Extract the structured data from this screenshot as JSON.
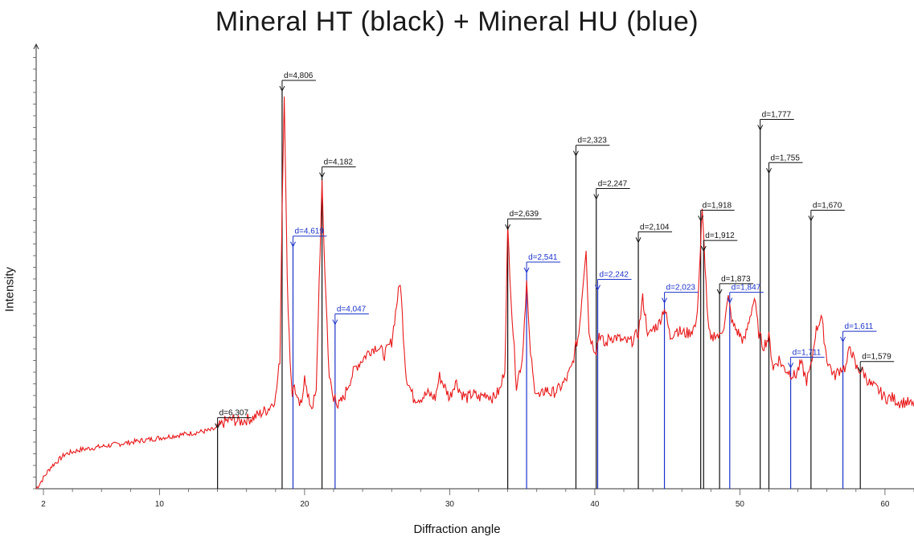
{
  "chart_data": {
    "type": "line",
    "title": "Mineral HT (black) + Mineral HU (blue)",
    "xlabel": "Diffraction angle",
    "ylabel": "Intensity",
    "xlim": [
      1.5,
      62
    ],
    "ylim": [
      0,
      100
    ],
    "x_tick_labels": [
      "2",
      "10",
      "20",
      "30",
      "40",
      "50",
      "60"
    ],
    "x_ticks": [
      2,
      10,
      20,
      30,
      40,
      50,
      60
    ],
    "colors": {
      "pattern": "#e8191a",
      "mineral_ht": "#111111",
      "mineral_hu": "#1c32c8"
    },
    "series": [
      {
        "name": "pattern",
        "x": [
          1.5,
          2.5,
          3.5,
          4.5,
          5.5,
          6.5,
          7.5,
          8.5,
          9.5,
          10.5,
          11.5,
          12.5,
          13.5,
          14.0,
          14.5,
          15.0,
          15.5,
          16.0,
          16.5,
          17.0,
          17.5,
          18.0,
          18.3,
          18.45,
          18.6,
          18.8,
          19.0,
          19.15,
          19.3,
          19.5,
          19.8,
          20.0,
          20.2,
          20.5,
          20.8,
          21.0,
          21.2,
          21.4,
          21.7,
          22.0,
          22.1,
          22.3,
          22.7,
          23.0,
          23.5,
          24.0,
          24.5,
          25.0,
          25.5,
          26.0,
          26.4,
          26.6,
          26.8,
          27.0,
          27.5,
          28.0,
          28.5,
          29.0,
          29.3,
          29.6,
          30.0,
          30.4,
          30.8,
          31.2,
          31.6,
          32.0,
          32.5,
          33.0,
          33.5,
          33.8,
          34.0,
          34.3,
          34.6,
          35.0,
          35.3,
          35.5,
          35.8,
          36.2,
          36.6,
          37.0,
          37.5,
          38.0,
          38.4,
          38.7,
          38.9,
          39.1,
          39.4,
          39.6,
          39.9,
          40.1,
          40.3,
          40.7,
          41.0,
          41.5,
          42.0,
          42.5,
          43.0,
          43.3,
          43.7,
          44.0,
          44.4,
          44.8,
          45.2,
          45.6,
          46.0,
          46.5,
          47.0,
          47.2,
          47.4,
          47.6,
          47.8,
          48.0,
          48.3,
          48.6,
          48.9,
          49.2,
          49.5,
          49.9,
          50.3,
          50.7,
          51.0,
          51.3,
          51.6,
          52.0,
          52.3,
          52.7,
          53.0,
          53.4,
          53.8,
          54.2,
          54.6,
          54.9,
          55.2,
          55.6,
          56.0,
          56.5,
          57.0,
          57.3,
          57.6,
          58.0,
          58.5,
          59.0,
          59.5,
          60.0,
          60.5,
          61.0,
          61.5,
          62.0
        ],
        "y": [
          0,
          5,
          8,
          9,
          9.5,
          10,
          10.5,
          11,
          11.5,
          12,
          12.5,
          13,
          13.5,
          14,
          15.5,
          16,
          15.5,
          16,
          16.5,
          17.5,
          18.5,
          21,
          30,
          65,
          92,
          48,
          30,
          22,
          24,
          20,
          19,
          27,
          21,
          19,
          22,
          48,
          70,
          50,
          26,
          20,
          22,
          19,
          21,
          24,
          28,
          30,
          32,
          33,
          31,
          34,
          44,
          48,
          36,
          26,
          21,
          21,
          22,
          21,
          26,
          24,
          21,
          25,
          22,
          21,
          22,
          21,
          22,
          21,
          23,
          28,
          60,
          40,
          24,
          30,
          48,
          34,
          24,
          21,
          23,
          22,
          23,
          25,
          28,
          33,
          36,
          44,
          56,
          36,
          33,
          32,
          36,
          33,
          35,
          35,
          34,
          34,
          36,
          44,
          35,
          37,
          38,
          42,
          35,
          37,
          36,
          36,
          38,
          50,
          64,
          52,
          38,
          34,
          36,
          35,
          38,
          44,
          38,
          36,
          34,
          40,
          44,
          36,
          33,
          35,
          28,
          30,
          28,
          27,
          26,
          29,
          25,
          28,
          36,
          40,
          30,
          26,
          28,
          28,
          33,
          28,
          27,
          24,
          23,
          21,
          21,
          20,
          20,
          19
        ]
      }
    ],
    "peaks": [
      {
        "label": "d=6,307",
        "x": 14.0,
        "y": 14,
        "mineral": "HT"
      },
      {
        "label": "d=4,806",
        "x": 18.45,
        "y": 92,
        "mineral": "HT"
      },
      {
        "label": "d=4,182",
        "x": 21.2,
        "y": 72,
        "mineral": "HT"
      },
      {
        "label": "d=4,619",
        "x": 19.2,
        "y": 56,
        "mineral": "HU"
      },
      {
        "label": "d=4,047",
        "x": 22.1,
        "y": 38,
        "mineral": "HU"
      },
      {
        "label": "d=2,639",
        "x": 34.0,
        "y": 60,
        "mineral": "HT"
      },
      {
        "label": "d=2,541",
        "x": 35.3,
        "y": 50,
        "mineral": "HU"
      },
      {
        "label": "d=2,323",
        "x": 38.7,
        "y": 77,
        "mineral": "HT"
      },
      {
        "label": "d=2,247",
        "x": 40.1,
        "y": 67,
        "mineral": "HT"
      },
      {
        "label": "d=2,242",
        "x": 40.2,
        "y": 46,
        "mineral": "HU"
      },
      {
        "label": "d=2,104",
        "x": 43.0,
        "y": 57,
        "mineral": "HT"
      },
      {
        "label": "d=2,023",
        "x": 44.8,
        "y": 43,
        "mineral": "HU"
      },
      {
        "label": "d=1,918",
        "x": 47.3,
        "y": 62,
        "mineral": "HT"
      },
      {
        "label": "d=1,912",
        "x": 47.5,
        "y": 55,
        "mineral": "HT"
      },
      {
        "label": "d=1,873",
        "x": 48.6,
        "y": 45,
        "mineral": "HT"
      },
      {
        "label": "d=1,847",
        "x": 49.3,
        "y": 43,
        "mineral": "HU"
      },
      {
        "label": "d=1,777",
        "x": 51.4,
        "y": 83,
        "mineral": "HT"
      },
      {
        "label": "d=1,755",
        "x": 52.0,
        "y": 73,
        "mineral": "HT"
      },
      {
        "label": "d=1,711",
        "x": 53.5,
        "y": 28,
        "mineral": "HU"
      },
      {
        "label": "d=1,670",
        "x": 54.9,
        "y": 62,
        "mineral": "HT"
      },
      {
        "label": "d=1,611",
        "x": 57.1,
        "y": 34,
        "mineral": "HU"
      },
      {
        "label": "d=1,579",
        "x": 58.3,
        "y": 27,
        "mineral": "HT"
      }
    ]
  }
}
